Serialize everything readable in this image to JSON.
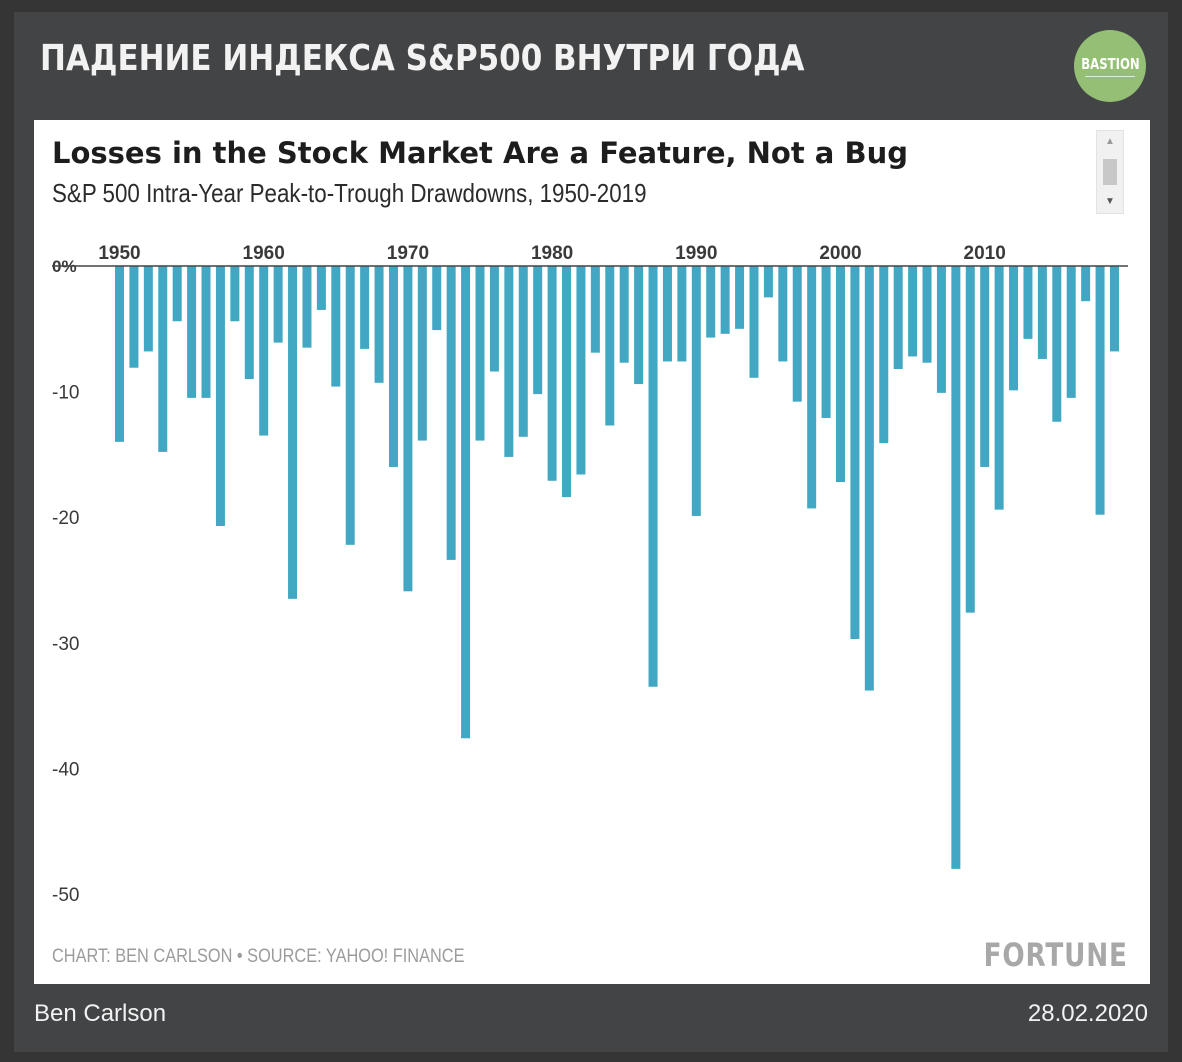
{
  "header": {
    "title": "ПАДЕНИЕ ИНДЕКСА S&P500 ВНУТРИ ГОДА",
    "logo_text": "BASTION"
  },
  "footer": {
    "author": "Ben Carlson",
    "date": "28.02.2020"
  },
  "colors": {
    "bar": "#42a7c2",
    "background": "#434446",
    "logo": "#95bf74"
  },
  "chart_data": {
    "type": "bar",
    "title": "Losses in the Stock Market Are a Feature, Not a Bug",
    "subtitle": "S&P 500 Intra-Year Peak-to-Trough Drawdowns, 1950-2019",
    "credit": "CHART: BEN CARLSON • SOURCE: YAHOO! FINANCE",
    "brand": "FORTUNE",
    "x_ticks": [
      "1950",
      "1960",
      "1970",
      "1980",
      "1990",
      "2000",
      "2010"
    ],
    "x_tick_years": [
      1950,
      1960,
      1970,
      1980,
      1990,
      2000,
      2010
    ],
    "y_ticks": [
      {
        "value": 0,
        "label": "0%"
      },
      {
        "value": -10,
        "label": "-10"
      },
      {
        "value": -20,
        "label": "-20"
      },
      {
        "value": -30,
        "label": "-30"
      },
      {
        "value": -40,
        "label": "-40"
      },
      {
        "value": -50,
        "label": "-50"
      }
    ],
    "ylim": [
      -50,
      0
    ],
    "years": [
      1950,
      1951,
      1952,
      1953,
      1954,
      1955,
      1956,
      1957,
      1958,
      1959,
      1960,
      1961,
      1962,
      1963,
      1964,
      1965,
      1966,
      1967,
      1968,
      1969,
      1970,
      1971,
      1972,
      1973,
      1974,
      1975,
      1976,
      1977,
      1978,
      1979,
      1980,
      1981,
      1982,
      1983,
      1984,
      1985,
      1986,
      1987,
      1988,
      1989,
      1990,
      1991,
      1992,
      1993,
      1994,
      1995,
      1996,
      1997,
      1998,
      1999,
      2000,
      2001,
      2002,
      2003,
      2004,
      2005,
      2006,
      2007,
      2008,
      2009,
      2010,
      2011,
      2012,
      2013,
      2014,
      2015,
      2016,
      2017,
      2018,
      2019
    ],
    "values": [
      -14.0,
      -8.1,
      -6.8,
      -14.8,
      -4.4,
      -10.5,
      -10.5,
      -20.7,
      -4.4,
      -9.0,
      -13.5,
      -6.1,
      -26.5,
      -6.5,
      -3.5,
      -9.6,
      -22.2,
      -6.6,
      -9.3,
      -16.0,
      -25.9,
      -13.9,
      -5.1,
      -23.4,
      -37.6,
      -13.9,
      -8.4,
      -15.2,
      -13.6,
      -10.2,
      -17.1,
      -18.4,
      -16.6,
      -6.9,
      -12.7,
      -7.7,
      -9.4,
      -33.5,
      -7.6,
      -7.6,
      -19.9,
      -5.7,
      -5.4,
      -5.0,
      -8.9,
      -2.5,
      -7.6,
      -10.8,
      -19.3,
      -12.1,
      -17.2,
      -29.7,
      -33.8,
      -14.1,
      -8.2,
      -7.2,
      -7.7,
      -10.1,
      -48.0,
      -27.6,
      -16.0,
      -19.4,
      -9.9,
      -5.8,
      -7.4,
      -12.4,
      -10.5,
      -2.8,
      -19.8,
      -6.8
    ]
  }
}
